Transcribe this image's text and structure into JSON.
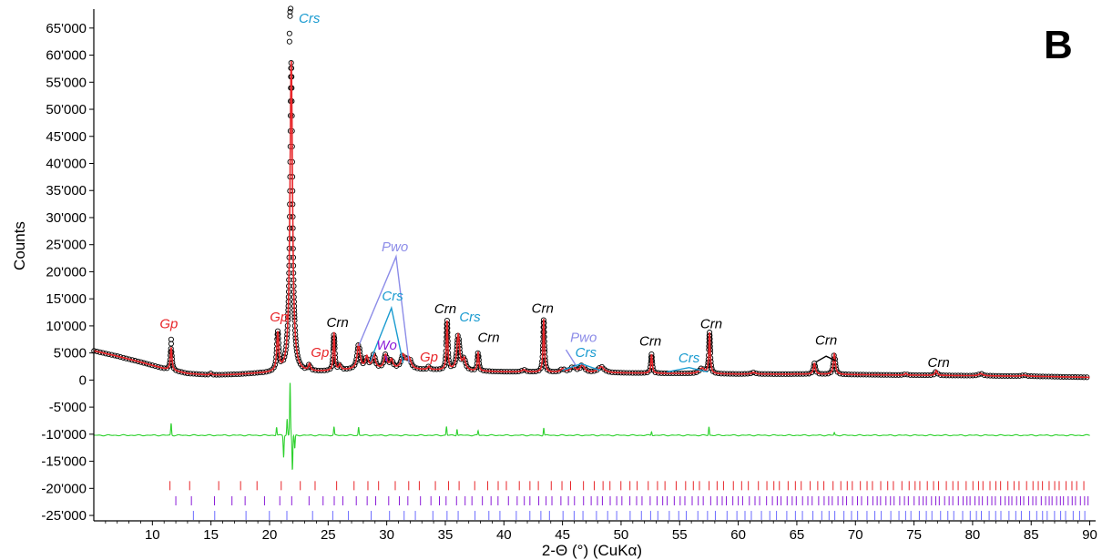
{
  "panel_letter": "B",
  "colors": {
    "observed": "#000000",
    "calculated": "#e8262a",
    "difference": "#2fd12f",
    "gp": "#e8262a",
    "crn": "#000000",
    "crs": "#1a9bd0",
    "pwo": "#8c8ce8",
    "wo": "#8a1ad8",
    "tick_rows": [
      "#e8262a",
      "#8a1ad8",
      "#6b6bff"
    ]
  },
  "chart_data": {
    "type": "line",
    "title": "",
    "xlabel": "2-Θ (°) (CuKα)",
    "ylabel": "Counts",
    "xlim": [
      5,
      90.5
    ],
    "ylim": [
      -26000,
      68500
    ],
    "grid": false,
    "xticks": [
      10,
      15,
      20,
      25,
      30,
      35,
      40,
      45,
      50,
      55,
      60,
      65,
      70,
      75,
      80,
      85,
      90
    ],
    "xtick_labels": [
      "10",
      "15",
      "20",
      "25",
      "30",
      "35",
      "40",
      "45",
      "50",
      "55",
      "60",
      "65",
      "70",
      "75",
      "80",
      "85",
      "90"
    ],
    "yticks": [
      65000,
      60000,
      55000,
      50000,
      45000,
      40000,
      35000,
      30000,
      25000,
      20000,
      15000,
      10000,
      5000,
      0,
      -5000,
      -10000,
      -15000,
      -20000,
      -25000
    ],
    "ytick_labels": [
      "65'000",
      "60'000",
      "55'000",
      "50'000",
      "45'000",
      "40'000",
      "35'000",
      "30'000",
      "25'000",
      "20'000",
      "15'000",
      "10'000",
      "5'000",
      "0",
      "-5'000",
      "-10'000",
      "-15'000",
      "-20'000",
      "-25'000"
    ],
    "background": {
      "x": [
        5,
        7,
        9,
        11,
        13,
        15,
        17,
        19,
        21,
        23,
        25,
        27,
        30,
        35,
        40,
        45,
        50,
        55,
        60,
        65,
        70,
        75,
        80,
        85,
        90
      ],
      "y": [
        5400,
        4400,
        3300,
        2100,
        1200,
        900,
        1000,
        1200,
        1300,
        1400,
        1600,
        1900,
        2000,
        1800,
        1500,
        1400,
        1300,
        1200,
        1100,
        1100,
        1000,
        900,
        800,
        700,
        500
      ]
    },
    "peaks": [
      {
        "x": 11.6,
        "h": 4200,
        "w": 0.08
      },
      {
        "x": 15.0,
        "h": 300,
        "w": 0.1
      },
      {
        "x": 20.7,
        "h": 7000,
        "w": 0.1
      },
      {
        "x": 21.85,
        "h": 57500,
        "w": 0.13
      },
      {
        "x": 23.4,
        "h": 1200,
        "w": 0.1
      },
      {
        "x": 25.5,
        "h": 7000,
        "w": 0.07
      },
      {
        "x": 26.0,
        "h": 1000,
        "w": 0.1
      },
      {
        "x": 27.6,
        "h": 4500,
        "w": 0.15
      },
      {
        "x": 28.3,
        "h": 2200,
        "w": 0.15
      },
      {
        "x": 28.9,
        "h": 2600,
        "w": 0.15
      },
      {
        "x": 29.9,
        "h": 2500,
        "w": 0.15
      },
      {
        "x": 30.4,
        "h": 1600,
        "w": 0.15
      },
      {
        "x": 31.4,
        "h": 2500,
        "w": 0.2
      },
      {
        "x": 31.9,
        "h": 2000,
        "w": 0.2
      },
      {
        "x": 33.6,
        "h": 600,
        "w": 0.1
      },
      {
        "x": 35.15,
        "h": 9000,
        "w": 0.07
      },
      {
        "x": 36.1,
        "h": 6500,
        "w": 0.14
      },
      {
        "x": 36.6,
        "h": 2000,
        "w": 0.15
      },
      {
        "x": 37.8,
        "h": 3500,
        "w": 0.07
      },
      {
        "x": 41.7,
        "h": 400,
        "w": 0.2
      },
      {
        "x": 43.4,
        "h": 9800,
        "w": 0.07
      },
      {
        "x": 45.0,
        "h": 600,
        "w": 0.2
      },
      {
        "x": 45.9,
        "h": 1000,
        "w": 0.25
      },
      {
        "x": 46.7,
        "h": 1400,
        "w": 0.2
      },
      {
        "x": 48.3,
        "h": 1100,
        "w": 0.3
      },
      {
        "x": 52.6,
        "h": 3500,
        "w": 0.07
      },
      {
        "x": 56.9,
        "h": 1000,
        "w": 0.25
      },
      {
        "x": 57.55,
        "h": 7500,
        "w": 0.07
      },
      {
        "x": 61.3,
        "h": 300,
        "w": 0.2
      },
      {
        "x": 66.5,
        "h": 2000,
        "w": 0.1
      },
      {
        "x": 68.2,
        "h": 3800,
        "w": 0.1
      },
      {
        "x": 74.3,
        "h": 300,
        "w": 0.1
      },
      {
        "x": 76.9,
        "h": 900,
        "w": 0.1
      },
      {
        "x": 80.7,
        "h": 400,
        "w": 0.2
      },
      {
        "x": 84.4,
        "h": 200,
        "w": 0.2
      }
    ],
    "outlier_points": [
      {
        "x": 11.6,
        "y": 7500
      },
      {
        "x": 11.6,
        "y": 6700
      },
      {
        "x": 21.7,
        "y": 62500
      },
      {
        "x": 21.7,
        "y": 64000
      },
      {
        "x": 21.75,
        "y": 67200
      },
      {
        "x": 21.75,
        "y": 68000
      },
      {
        "x": 21.8,
        "y": 68600
      }
    ],
    "difference_offset": -10200,
    "difference_spikes": [
      {
        "x": 11.6,
        "dy": 2200
      },
      {
        "x": 20.6,
        "dy": 1500
      },
      {
        "x": 21.2,
        "dy": -4000
      },
      {
        "x": 21.5,
        "dy": 3000
      },
      {
        "x": 21.75,
        "dy": 10000
      },
      {
        "x": 21.95,
        "dy": -6500
      },
      {
        "x": 22.15,
        "dy": -2500
      },
      {
        "x": 25.5,
        "dy": 1500
      },
      {
        "x": 27.6,
        "dy": 1500
      },
      {
        "x": 35.1,
        "dy": 1600
      },
      {
        "x": 36.0,
        "dy": 1200
      },
      {
        "x": 37.8,
        "dy": 800
      },
      {
        "x": 43.4,
        "dy": 1400
      },
      {
        "x": 52.6,
        "dy": 700
      },
      {
        "x": 57.5,
        "dy": 1600
      },
      {
        "x": 68.2,
        "dy": 500
      }
    ],
    "tick_rows": [
      {
        "y": -19500,
        "start": 11.5,
        "spacing": 2.4,
        "density_gain": 0.05
      },
      {
        "y": -22300,
        "start": 12.0,
        "spacing": 1.9,
        "density_gain": 0.06
      },
      {
        "y": -25000,
        "start": 13.5,
        "spacing": 2.6,
        "density_gain": 0.05
      }
    ],
    "phase_labels": [
      {
        "text": "Gp",
        "x": 11.4,
        "y": 9600,
        "phase": "gp"
      },
      {
        "text": "Gp",
        "x": 20.8,
        "y": 10800,
        "phase": "gp"
      },
      {
        "text": "Gp",
        "x": 24.3,
        "y": 4300,
        "phase": "gp"
      },
      {
        "text": "Gp",
        "x": 33.6,
        "y": 3400,
        "phase": "gp"
      },
      {
        "text": "Crs",
        "x": 23.4,
        "y": 66000,
        "phase": "crs"
      },
      {
        "text": "Crn",
        "x": 25.8,
        "y": 9800,
        "phase": "crn"
      },
      {
        "text": "Pwo",
        "x": 30.7,
        "y": 23800,
        "phase": "pwo"
      },
      {
        "text": "Crs",
        "x": 30.5,
        "y": 14700,
        "phase": "crs"
      },
      {
        "text": "Wo",
        "x": 30.0,
        "y": 5600,
        "phase": "wo"
      },
      {
        "text": "Crn",
        "x": 35.0,
        "y": 12300,
        "phase": "crn"
      },
      {
        "text": "Crs",
        "x": 37.1,
        "y": 10800,
        "phase": "crs"
      },
      {
        "text": "Crn",
        "x": 38.7,
        "y": 7000,
        "phase": "crn"
      },
      {
        "text": "Crn",
        "x": 43.3,
        "y": 12400,
        "phase": "crn"
      },
      {
        "text": "Pwo",
        "x": 46.8,
        "y": 7000,
        "phase": "pwo"
      },
      {
        "text": "Crs",
        "x": 47.0,
        "y": 4300,
        "phase": "crs"
      },
      {
        "text": "Crn",
        "x": 52.5,
        "y": 6400,
        "phase": "crn"
      },
      {
        "text": "Crs",
        "x": 55.8,
        "y": 3300,
        "phase": "crs"
      },
      {
        "text": "Crn",
        "x": 57.7,
        "y": 9600,
        "phase": "crn"
      },
      {
        "text": "Crn",
        "x": 67.5,
        "y": 6500,
        "phase": "crn"
      },
      {
        "text": "Crn",
        "x": 77.1,
        "y": 2400,
        "phase": "crn"
      }
    ],
    "label_leaders": [
      {
        "phase": "pwo",
        "pts": [
          [
            27.6,
            6300
          ],
          [
            30.8,
            22800
          ],
          [
            31.9,
            3200
          ]
        ]
      },
      {
        "phase": "crs",
        "pts": [
          [
            28.6,
            3500
          ],
          [
            30.4,
            13300
          ],
          [
            31.4,
            3200
          ]
        ]
      },
      {
        "phase": "wo",
        "pts": [
          [
            29.9,
            4500
          ],
          [
            30.0,
            3500
          ]
        ]
      },
      {
        "phase": "pwo",
        "pts": [
          [
            45.3,
            5600
          ],
          [
            46.2,
            2500
          ]
        ]
      },
      {
        "phase": "crs",
        "pts": [
          [
            45.0,
            1800
          ],
          [
            46.6,
            3000
          ],
          [
            48.2,
            1800
          ]
        ]
      },
      {
        "phase": "crs",
        "pts": [
          [
            53.9,
            1500
          ],
          [
            55.8,
            2300
          ],
          [
            57.4,
            1500
          ]
        ]
      },
      {
        "phase": "crn",
        "pts": [
          [
            66.6,
            3300
          ],
          [
            67.5,
            4400
          ],
          [
            68.3,
            3600
          ]
        ]
      }
    ]
  }
}
